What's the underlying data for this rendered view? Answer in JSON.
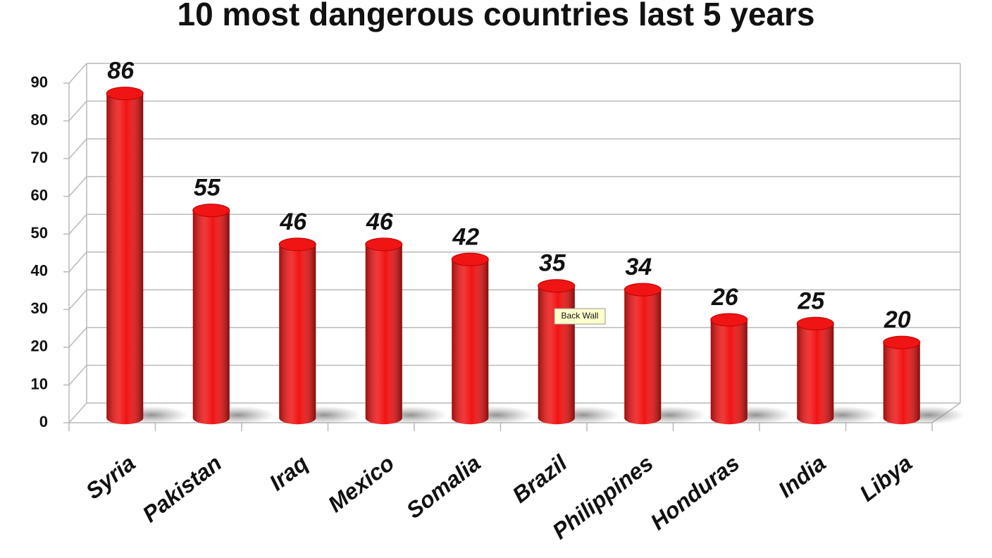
{
  "chart_data": {
    "type": "bar",
    "title": "10 most dangerous countries last 5 years",
    "categories": [
      "Syria",
      "Pakistan",
      "Iraq",
      "Mexico",
      "Somalia",
      "Brazil",
      "Philippines",
      "Honduras",
      "India",
      "Libya"
    ],
    "values": [
      86,
      55,
      46,
      46,
      42,
      35,
      34,
      26,
      25,
      20
    ],
    "color": "#f01414",
    "ylim": [
      0,
      90
    ],
    "yticks": [
      0,
      10,
      20,
      30,
      40,
      50,
      60,
      70,
      80,
      90
    ],
    "grid": true,
    "tooltip": "Back Wall"
  }
}
